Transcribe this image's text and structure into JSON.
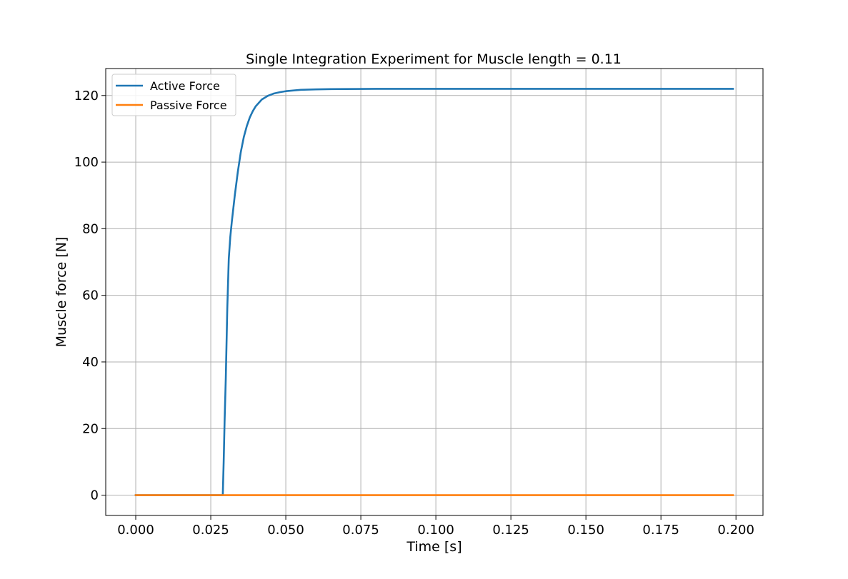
{
  "chart_data": {
    "type": "line",
    "title": "Single Integration Experiment for Muscle length = 0.11",
    "xlabel": "Time [s]",
    "ylabel": "Muscle force [N]",
    "xlim": [
      -0.01,
      0.209
    ],
    "ylim": [
      -6.1,
      128.1
    ],
    "xticks": [
      0.0,
      0.025,
      0.05,
      0.075,
      0.1,
      0.125,
      0.15,
      0.175,
      0.2
    ],
    "xtick_labels": [
      "0.000",
      "0.025",
      "0.050",
      "0.075",
      "0.100",
      "0.125",
      "0.150",
      "0.175",
      "0.200"
    ],
    "yticks": [
      0,
      20,
      40,
      60,
      80,
      100,
      120
    ],
    "ytick_labels": [
      "0",
      "20",
      "40",
      "60",
      "80",
      "100",
      "120"
    ],
    "grid": true,
    "legend": "top-left",
    "series": [
      {
        "name": "Active Force",
        "color": "#1f77b4",
        "x": [
          0.0,
          0.029,
          0.0293,
          0.0296,
          0.03,
          0.0305,
          0.031,
          0.0315,
          0.032,
          0.033,
          0.034,
          0.035,
          0.036,
          0.037,
          0.038,
          0.039,
          0.04,
          0.042,
          0.044,
          0.046,
          0.048,
          0.05,
          0.055,
          0.06,
          0.065,
          0.07,
          0.08,
          0.09,
          0.1,
          0.125,
          0.15,
          0.175,
          0.199
        ],
        "y": [
          0.0,
          0.0,
          10.0,
          22.0,
          35.0,
          56.0,
          71.0,
          77.5,
          82.0,
          90.0,
          97.0,
          103.0,
          107.5,
          110.8,
          113.4,
          115.3,
          116.8,
          118.8,
          119.9,
          120.6,
          121.0,
          121.3,
          121.7,
          121.85,
          121.92,
          121.95,
          122.0,
          122.0,
          122.0,
          122.0,
          122.0,
          122.0,
          122.0
        ]
      },
      {
        "name": "Passive Force",
        "color": "#ff7f0e",
        "x": [
          0.0,
          0.05,
          0.1,
          0.15,
          0.199
        ],
        "y": [
          0.0,
          0.0,
          0.0,
          0.0,
          0.0
        ]
      }
    ]
  }
}
